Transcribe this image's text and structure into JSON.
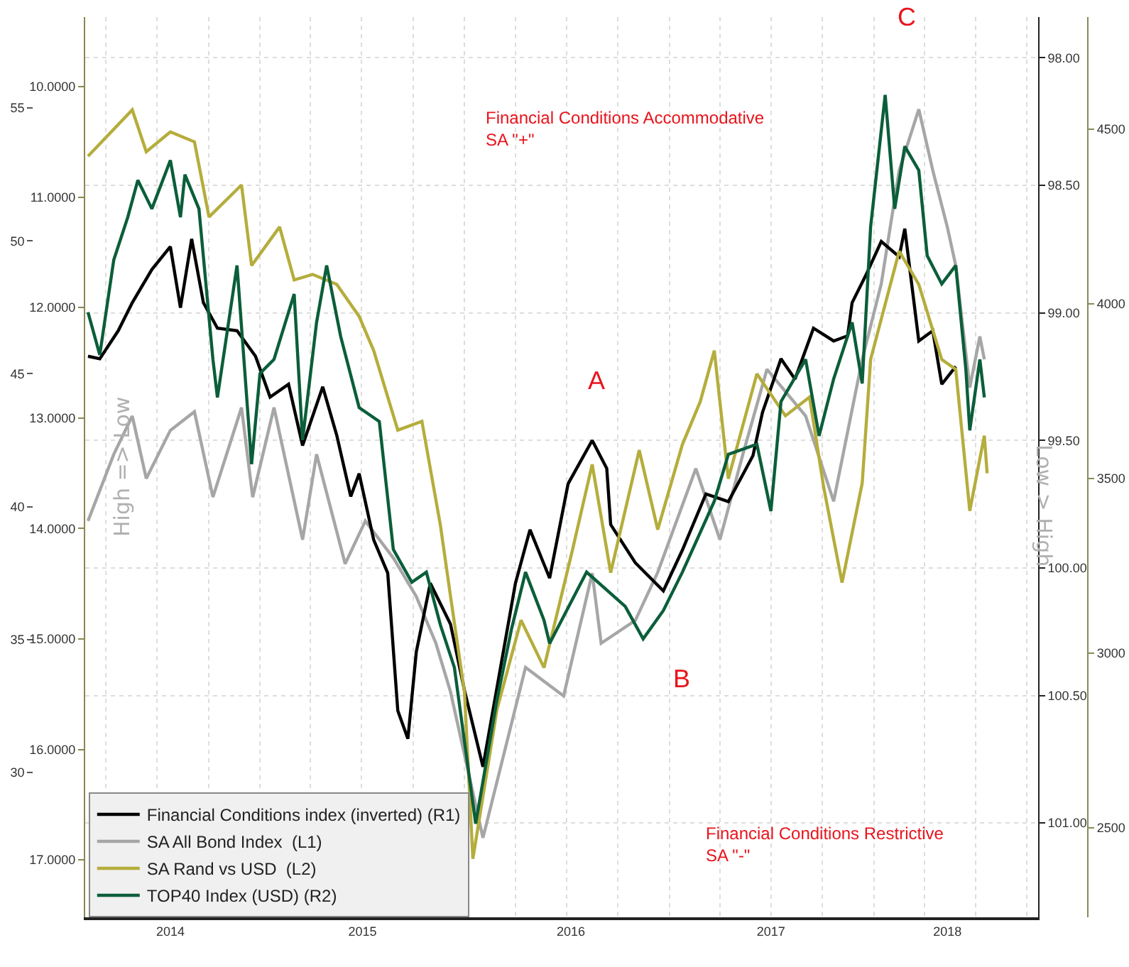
{
  "chart_data": [
    {
      "type": "line",
      "y2label": "Low > High",
      "annotations": [
        "A",
        "B",
        "C",
        "Financial Conditions Accommodative\nSA \"+\"",
        "Financial Conditions Restrictive\nSA \"-\""
      ],
      "xlim": [
        "2014-02-23",
        "2018-10-21"
      ],
      "xticks": [
        {
          "value": "2014-07-25",
          "label": "2014"
        },
        {
          "value": "2015-07-03",
          "label": "2015"
        },
        {
          "value": "2016-07-09",
          "label": "2016"
        },
        {
          "value": "2017-07-01",
          "label": "2017"
        },
        {
          "value": "2018-05-12",
          "label": "2018"
        }
      ],
      "ylim": [
        24.55,
        58.42
      ],
      "yticks": [
        30,
        35,
        40,
        45,
        50,
        55
      ],
      "y2lim": [
        101.37,
        97.84
      ],
      "y2ticks": [
        {
          "value": 98,
          "label": "98.00"
        },
        {
          "value": 98.5,
          "label": "98.50"
        },
        {
          "value": 99,
          "label": "99.00"
        },
        {
          "value": 99.5,
          "label": "99.50"
        },
        {
          "value": 100,
          "label": "100.00"
        },
        {
          "value": 100.5,
          "label": "100.50"
        },
        {
          "value": 101,
          "label": "101.00"
        }
      ],
      "grid": true,
      "legend": "bottom left",
      "marker": "none",
      "line_style": "solid",
      "series": [
        {
          "name": "Financial Conditions index (inverted) (R1)",
          "color": "#000000",
          "axis": "y2",
          "x": [
            "2014-02-28",
            "2014-03-21",
            "2014-04-23",
            "2014-05-18",
            "2014-06-22",
            "2014-07-25",
            "2014-08-12",
            "2014-09-01",
            "2014-09-22",
            "2014-10-17",
            "2014-11-21",
            "2014-12-24",
            "2015-01-19",
            "2015-02-21",
            "2015-03-18",
            "2015-04-23",
            "2015-05-18",
            "2015-06-12",
            "2015-06-27",
            "2015-07-23",
            "2015-08-17",
            "2015-09-04",
            "2015-09-22",
            "2015-10-07",
            "2015-11-01",
            "2015-12-07",
            "2016-01-01",
            "2016-02-03",
            "2016-04-01",
            "2016-04-27",
            "2016-06-01",
            "2016-07-04",
            "2016-08-16",
            "2016-09-11",
            "2016-09-18",
            "2016-11-01",
            "2016-12-21",
            "2017-01-24",
            "2017-03-07",
            "2017-04-16",
            "2017-05-30",
            "2017-06-16",
            "2017-07-19",
            "2017-08-13",
            "2017-09-15",
            "2017-10-21",
            "2017-11-15",
            "2017-11-23",
            "2017-12-18",
            "2018-01-14",
            "2018-02-15",
            "2018-02-25",
            "2018-03-22",
            "2018-04-16",
            "2018-05-02",
            "2018-05-27"
          ],
          "values": [
            99.17,
            99.18,
            99.07,
            98.96,
            98.83,
            98.74,
            98.98,
            98.71,
            98.96,
            99.06,
            99.07,
            99.17,
            99.33,
            99.28,
            99.52,
            99.29,
            99.48,
            99.72,
            99.63,
            99.89,
            100.02,
            100.56,
            100.67,
            100.33,
            100.06,
            100.22,
            100.48,
            100.78,
            100.06,
            99.85,
            100.04,
            99.67,
            99.5,
            99.61,
            99.83,
            99.98,
            100.09,
            99.93,
            99.71,
            99.74,
            99.56,
            99.39,
            99.18,
            99.26,
            99.06,
            99.11,
            99.09,
            98.96,
            98.85,
            98.72,
            98.78,
            98.67,
            99.11,
            99.07,
            99.28,
            99.21
          ]
        },
        {
          "name": "SA All Bond Index  (L1)",
          "color": "#a6a6a6",
          "axis": "y",
          "x": [
            "2014-02-28",
            "2014-04-15",
            "2014-05-18",
            "2014-06-12",
            "2014-07-25",
            "2014-09-06",
            "2014-10-09",
            "2014-11-29",
            "2014-12-19",
            "2015-01-26",
            "2015-03-18",
            "2015-04-12",
            "2015-06-02",
            "2015-07-08",
            "2015-08-27",
            "2015-10-07",
            "2015-11-11",
            "2015-12-07",
            "2016-02-03",
            "2016-04-19",
            "2016-06-26",
            "2016-08-16",
            "2016-09-01",
            "2016-11-01",
            "2016-12-11",
            "2017-02-17",
            "2017-04-01",
            "2017-05-12",
            "2017-06-24",
            "2017-09-01",
            "2017-10-21",
            "2017-12-11",
            "2018-01-14",
            "2018-02-15",
            "2018-03-22",
            "2018-04-16",
            "2018-05-12",
            "2018-05-27",
            "2018-06-21",
            "2018-07-09",
            "2018-07-17"
          ],
          "values": [
            39.46,
            41.97,
            43.41,
            41.06,
            42.87,
            43.57,
            40.36,
            43.73,
            40.36,
            43.73,
            38.76,
            41.97,
            37.85,
            39.46,
            38.07,
            36.62,
            34.86,
            33.04,
            27.54,
            33.95,
            32.88,
            37.5,
            34.86,
            35.72,
            37.53,
            41.43,
            38.76,
            41.97,
            45.17,
            43.41,
            40.2,
            45.54,
            48.38,
            52.65,
            54.95,
            52.65,
            50.51,
            49.07,
            44.48,
            46.4,
            45.54
          ]
        }
      ]
    },
    {
      "type": "line",
      "ylabel": "High => Low",
      "xlim": [
        "2014-02-23",
        "2018-10-21"
      ],
      "tick_labels": "y",
      "ylim": [
        17.52,
        9.37
      ],
      "yticks": [
        {
          "value": 10,
          "label": "10.0000"
        },
        {
          "value": 11,
          "label": "11.0000"
        },
        {
          "value": 12,
          "label": "12.0000"
        },
        {
          "value": 13,
          "label": "13.0000"
        },
        {
          "value": 14,
          "label": "14.0000"
        },
        {
          "value": 15,
          "label": "15.0000"
        },
        {
          "value": 16,
          "label": "16.0000"
        },
        {
          "value": 17,
          "label": "17.0000"
        }
      ],
      "y2lim": [
        2244,
        4821
      ],
      "y2ticks": [
        2500,
        3000,
        3500,
        4000,
        4500
      ],
      "legend": "bottom left",
      "marker": "none",
      "line_style": "solid",
      "series": [
        {
          "name": "SA Rand vs USD  (L2)",
          "color": "#b5ad3c",
          "axis": "y",
          "x": [
            "2014-02-28",
            "2014-05-18",
            "2014-06-12",
            "2014-07-25",
            "2014-09-06",
            "2014-10-02",
            "2014-11-29",
            "2014-12-17",
            "2015-02-05",
            "2015-03-03",
            "2015-04-05",
            "2015-05-18",
            "2015-06-27",
            "2015-07-23",
            "2015-09-04",
            "2015-10-17",
            "2015-11-19",
            "2015-12-07",
            "2016-01-01",
            "2016-01-16",
            "2016-02-28",
            "2016-04-11",
            "2016-05-22",
            "2016-07-12",
            "2016-08-16",
            "2016-09-18",
            "2016-11-08",
            "2016-12-11",
            "2017-01-24",
            "2017-02-25",
            "2017-03-22",
            "2017-04-16",
            "2017-06-06",
            "2017-07-27",
            "2017-09-08",
            "2017-10-03",
            "2017-11-05",
            "2017-12-11",
            "2017-12-26",
            "2018-02-15",
            "2018-03-22",
            "2018-05-02",
            "2018-05-27",
            "2018-06-21",
            "2018-07-17",
            "2018-07-22"
          ],
          "values": [
            10.63,
            10.21,
            10.59,
            10.41,
            10.5,
            11.18,
            10.89,
            11.62,
            11.27,
            11.75,
            11.7,
            11.79,
            12.08,
            12.39,
            13.11,
            13.03,
            13.97,
            14.61,
            15.48,
            16.99,
            15.64,
            14.83,
            15.26,
            14.19,
            13.42,
            14.4,
            13.29,
            14.01,
            13.24,
            12.85,
            12.39,
            13.55,
            12.6,
            12.98,
            12.81,
            13.62,
            14.49,
            13.59,
            12.47,
            11.49,
            11.79,
            12.47,
            12.56,
            13.84,
            13.16,
            13.5
          ]
        },
        {
          "name": "TOP40 Index (USD) (R2)",
          "color": "#0b5e3a",
          "axis": "y2",
          "x": [
            "2014-02-28",
            "2014-03-21",
            "2014-04-15",
            "2014-05-10",
            "2014-05-28",
            "2014-06-22",
            "2014-07-25",
            "2014-08-12",
            "2014-08-20",
            "2014-09-14",
            "2014-10-09",
            "2014-10-17",
            "2014-11-21",
            "2014-12-17",
            "2015-01-01",
            "2015-01-26",
            "2015-03-03",
            "2015-03-18",
            "2015-04-12",
            "2015-04-30",
            "2015-05-25",
            "2015-06-27",
            "2015-08-02",
            "2015-08-27",
            "2015-09-29",
            "2015-10-25",
            "2015-11-19",
            "2015-12-14",
            "2016-01-21",
            "2016-02-28",
            "2016-03-25",
            "2016-04-19",
            "2016-05-22",
            "2016-06-01",
            "2016-08-06",
            "2016-10-14",
            "2016-11-15",
            "2016-12-21",
            "2017-01-24",
            "2017-03-22",
            "2017-04-16",
            "2017-06-06",
            "2017-07-01",
            "2017-07-19",
            "2017-09-01",
            "2017-09-25",
            "2017-10-21",
            "2017-11-23",
            "2017-12-11",
            "2017-12-26",
            "2018-01-21",
            "2018-02-07",
            "2018-02-25",
            "2018-03-22",
            "2018-04-06",
            "2018-05-02",
            "2018-05-27",
            "2018-06-14",
            "2018-06-21",
            "2018-07-09",
            "2018-07-17"
          ],
          "values": [
            3976,
            3854,
            4126,
            4248,
            4354,
            4272,
            4411,
            4248,
            4370,
            4272,
            3841,
            3732,
            4110,
            3541,
            3801,
            3841,
            4028,
            3610,
            3947,
            4110,
            3907,
            3703,
            3663,
            3297,
            3203,
            3232,
            3081,
            2959,
            2512,
            2866,
            3069,
            3232,
            3094,
            3028,
            3232,
            3134,
            3041,
            3122,
            3232,
            3435,
            3569,
            3598,
            3407,
            3720,
            3841,
            3622,
            3785,
            3947,
            3772,
            4220,
            4598,
            4272,
            4451,
            4382,
            4138,
            4057,
            4110,
            3813,
            3638,
            3841,
            3732
          ]
        }
      ]
    }
  ]
}
